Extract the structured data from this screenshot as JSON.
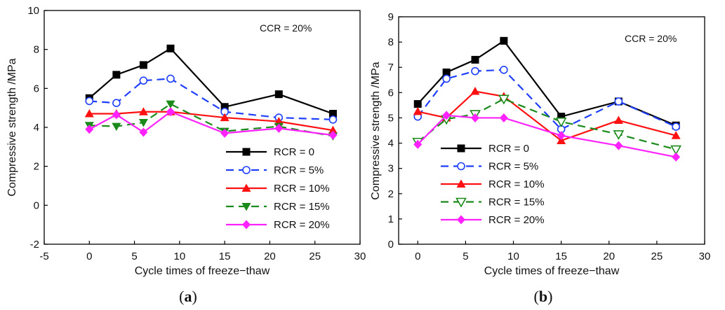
{
  "chart_data": [
    {
      "type": "line",
      "panel_label": "a",
      "annotation": "CCR = 20%",
      "xlabel": "Cycle times of freeze−thaw",
      "ylabel": "Compressive strength /MPa",
      "xlim": [
        -5,
        30
      ],
      "ylim": [
        -2,
        10
      ],
      "xticks": [
        -5,
        0,
        5,
        10,
        15,
        20,
        25,
        30
      ],
      "yticks": [
        -2,
        0,
        2,
        4,
        6,
        8,
        10
      ],
      "x": [
        0,
        3,
        6,
        9,
        15,
        21,
        27
      ],
      "legend_position": "lower-right",
      "series": [
        {
          "name": "RCR = 0",
          "color": "#000000",
          "dash": "solid",
          "marker": "square",
          "values": [
            5.5,
            6.7,
            7.2,
            8.05,
            5.05,
            5.7,
            4.7
          ]
        },
        {
          "name": "RCR = 5%",
          "color": "#1f3fff",
          "dash": "dashed",
          "marker": "circle-open",
          "values": [
            5.35,
            5.25,
            6.4,
            6.5,
            4.8,
            4.5,
            4.4
          ]
        },
        {
          "name": "RCR = 10%",
          "color": "#ff1010",
          "dash": "solid",
          "marker": "triangle-up",
          "values": [
            4.7,
            4.7,
            4.8,
            4.8,
            4.5,
            4.3,
            3.85
          ]
        },
        {
          "name": "RCR = 15%",
          "color": "#1a8a1a",
          "dash": "dashed",
          "marker": "triangle-down",
          "values": [
            4.1,
            4.05,
            4.25,
            5.2,
            3.8,
            4.05,
            3.55
          ]
        },
        {
          "name": "RCR = 20%",
          "color": "#ff22ff",
          "dash": "solid",
          "marker": "diamond",
          "values": [
            3.9,
            4.65,
            3.75,
            4.8,
            3.7,
            3.95,
            3.6
          ]
        }
      ]
    },
    {
      "type": "line",
      "panel_label": "b",
      "annotation": "CCR = 20%",
      "xlabel": "Cycle times of freeze−thaw",
      "ylabel": "Compressive strength /MPa",
      "xlim": [
        -2,
        30
      ],
      "ylim": [
        0,
        9
      ],
      "xticks": [
        0,
        5,
        10,
        15,
        20,
        25,
        30
      ],
      "yticks": [
        0,
        1,
        2,
        3,
        4,
        5,
        6,
        7,
        8,
        9
      ],
      "x": [
        0,
        3,
        6,
        9,
        15,
        21,
        27
      ],
      "legend_position": "lower-left",
      "series": [
        {
          "name": "RCR = 0",
          "color": "#000000",
          "dash": "solid",
          "marker": "square",
          "values": [
            5.55,
            6.8,
            7.3,
            8.05,
            5.05,
            5.65,
            4.7
          ]
        },
        {
          "name": "RCR = 5%",
          "color": "#1f3fff",
          "dash": "dashed",
          "marker": "circle-open",
          "values": [
            5.05,
            6.55,
            6.85,
            6.9,
            4.55,
            5.65,
            4.65
          ]
        },
        {
          "name": "RCR = 10%",
          "color": "#ff1010",
          "dash": "solid",
          "marker": "triangle-up",
          "values": [
            5.25,
            5.0,
            6.05,
            5.85,
            4.1,
            4.9,
            4.3
          ]
        },
        {
          "name": "RCR = 15%",
          "color": "#1a8a1a",
          "dash": "dashed",
          "marker": "triangle-down-open",
          "values": [
            4.05,
            4.95,
            5.15,
            5.75,
            4.85,
            4.35,
            3.75
          ]
        },
        {
          "name": "RCR = 20%",
          "color": "#ff22ff",
          "dash": "solid",
          "marker": "diamond",
          "values": [
            3.95,
            5.1,
            5.0,
            5.0,
            4.3,
            3.9,
            3.45
          ]
        }
      ]
    }
  ]
}
